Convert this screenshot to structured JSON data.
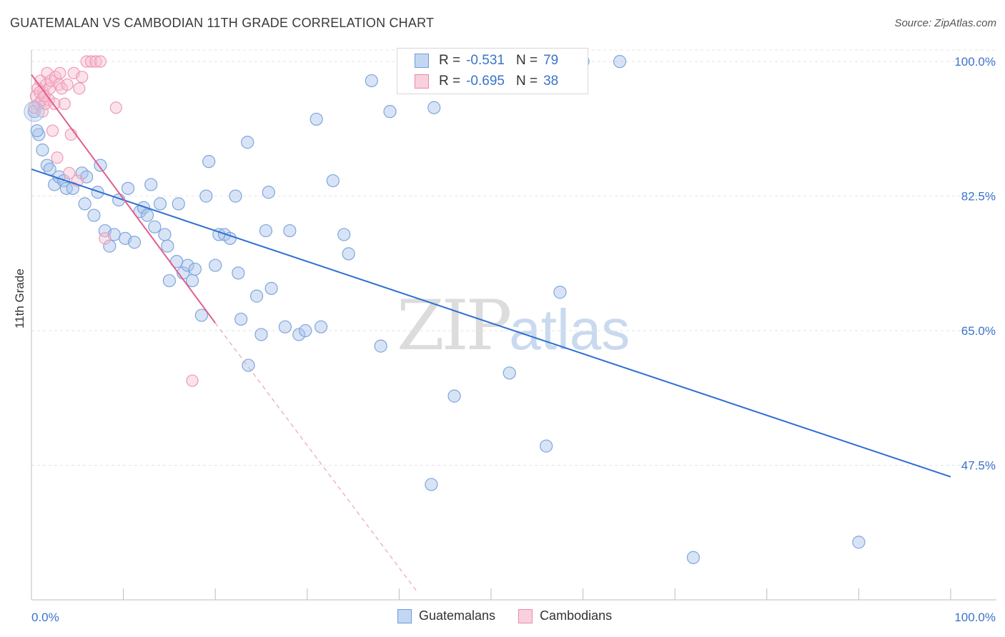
{
  "header": {
    "title": "GUATEMALAN VS CAMBODIAN 11TH GRADE CORRELATION CHART",
    "source": "Source: ZipAtlas.com"
  },
  "watermark": {
    "zip": "ZIP",
    "atlas": "atlas"
  },
  "legend": {
    "rows": [
      {
        "r_label": "R =",
        "r_value": "-0.531",
        "n_label": "N =",
        "n_value": "79",
        "color": "#a9c4ec",
        "border": "#6d9bdc"
      },
      {
        "r_label": "R =",
        "r_value": "-0.695",
        "n_label": "N =",
        "n_value": "38",
        "color": "#f7bfd1",
        "border": "#e98aa9"
      }
    ]
  },
  "bottom_legend": [
    "Guatemalans",
    "Cambodians"
  ],
  "chart_data": {
    "type": "scatter",
    "title": "GUATEMALAN VS CAMBODIAN 11TH GRADE CORRELATION CHART",
    "xlabel": "",
    "ylabel": "11th Grade",
    "xlim": [
      0,
      100
    ],
    "ylim": [
      30,
      101.5
    ],
    "x_tick_labels": [
      "0.0%",
      "100.0%"
    ],
    "y_ticks": [
      47.5,
      65.0,
      82.5,
      100.0
    ],
    "y_tick_labels": [
      "47.5%",
      "65.0%",
      "82.5%",
      "100.0%"
    ],
    "grid": true,
    "colors": {
      "guatemalans": "#3b73c9",
      "cambodians": "#e25d8e",
      "tick_text": "#3b73c9"
    },
    "series": [
      {
        "name": "Guatemalans",
        "points": [
          [
            0.3,
            93.5
          ],
          [
            0.8,
            90.5
          ],
          [
            1.2,
            88.5
          ],
          [
            1.7,
            86.5
          ],
          [
            2.0,
            86.0
          ],
          [
            2.5,
            84.0
          ],
          [
            3.0,
            85.0
          ],
          [
            3.5,
            84.5
          ],
          [
            3.8,
            83.5
          ],
          [
            4.5,
            83.5
          ],
          [
            5.5,
            85.5
          ],
          [
            6.0,
            85.0
          ],
          [
            5.8,
            81.5
          ],
          [
            6.8,
            80.0
          ],
          [
            7.2,
            83.0
          ],
          [
            7.5,
            86.5
          ],
          [
            8.0,
            78.0
          ],
          [
            8.5,
            76.0
          ],
          [
            9.0,
            77.5
          ],
          [
            9.5,
            82.0
          ],
          [
            10.2,
            77.0
          ],
          [
            10.5,
            83.5
          ],
          [
            11.2,
            76.5
          ],
          [
            11.8,
            80.5
          ],
          [
            12.2,
            81.0
          ],
          [
            12.6,
            80.0
          ],
          [
            13.0,
            84.0
          ],
          [
            13.4,
            78.5
          ],
          [
            14.0,
            81.5
          ],
          [
            14.5,
            77.5
          ],
          [
            14.8,
            76.0
          ],
          [
            15.0,
            71.5
          ],
          [
            15.8,
            74.0
          ],
          [
            16.0,
            81.5
          ],
          [
            16.5,
            72.5
          ],
          [
            17.0,
            73.5
          ],
          [
            17.5,
            71.5
          ],
          [
            17.8,
            73.0
          ],
          [
            18.5,
            67.0
          ],
          [
            19.0,
            82.5
          ],
          [
            19.3,
            87.0
          ],
          [
            20.0,
            73.5
          ],
          [
            20.4,
            77.5
          ],
          [
            21.0,
            77.5
          ],
          [
            21.6,
            77.0
          ],
          [
            22.2,
            82.5
          ],
          [
            22.5,
            72.5
          ],
          [
            22.8,
            66.5
          ],
          [
            23.5,
            89.5
          ],
          [
            23.6,
            60.5
          ],
          [
            24.5,
            69.5
          ],
          [
            25.0,
            64.5
          ],
          [
            25.8,
            83.0
          ],
          [
            25.5,
            78.0
          ],
          [
            26.1,
            70.5
          ],
          [
            27.6,
            65.5
          ],
          [
            28.1,
            78.0
          ],
          [
            29.1,
            64.5
          ],
          [
            29.8,
            65.0
          ],
          [
            31.0,
            92.5
          ],
          [
            31.5,
            65.5
          ],
          [
            32.8,
            84.5
          ],
          [
            34.0,
            77.5
          ],
          [
            34.5,
            75.0
          ],
          [
            37.0,
            97.5
          ],
          [
            38.0,
            63.0
          ],
          [
            39.0,
            93.5
          ],
          [
            43.5,
            45.0
          ],
          [
            43.8,
            94.0
          ],
          [
            46.0,
            56.5
          ],
          [
            52.0,
            59.5
          ],
          [
            53.5,
            100.0
          ],
          [
            56.0,
            50.0
          ],
          [
            57.5,
            70.0
          ],
          [
            60.0,
            100.0
          ],
          [
            64.0,
            100.0
          ],
          [
            72.0,
            35.5
          ],
          [
            90.0,
            37.5
          ],
          [
            0.6,
            91.0
          ]
        ],
        "trend": [
          [
            0,
            86.0
          ],
          [
            100,
            46.0
          ]
        ]
      },
      {
        "name": "Cambodians",
        "points": [
          [
            0.3,
            94.0
          ],
          [
            0.5,
            95.5
          ],
          [
            0.7,
            96.5
          ],
          [
            0.8,
            94.5
          ],
          [
            1.0,
            97.5
          ],
          [
            1.1,
            95.0
          ],
          [
            1.2,
            93.5
          ],
          [
            1.3,
            96.0
          ],
          [
            1.5,
            94.5
          ],
          [
            1.6,
            97.0
          ],
          [
            1.7,
            98.5
          ],
          [
            1.9,
            95.0
          ],
          [
            2.0,
            96.5
          ],
          [
            2.1,
            97.5
          ],
          [
            2.3,
            91.0
          ],
          [
            2.5,
            94.5
          ],
          [
            2.6,
            98.0
          ],
          [
            2.8,
            87.5
          ],
          [
            3.0,
            97.0
          ],
          [
            3.1,
            98.5
          ],
          [
            3.3,
            96.5
          ],
          [
            3.6,
            94.5
          ],
          [
            3.9,
            97.0
          ],
          [
            4.1,
            85.5
          ],
          [
            4.3,
            90.5
          ],
          [
            4.6,
            98.5
          ],
          [
            5.0,
            84.5
          ],
          [
            5.2,
            96.5
          ],
          [
            5.5,
            98.0
          ],
          [
            6.0,
            100.0
          ],
          [
            6.5,
            100.0
          ],
          [
            7.0,
            100.0
          ],
          [
            7.5,
            100.0
          ],
          [
            8.0,
            77.0
          ],
          [
            9.2,
            94.0
          ],
          [
            17.5,
            58.5
          ],
          [
            0.9,
            96.0
          ],
          [
            1.4,
            95.5
          ]
        ],
        "trend_solid": [
          [
            0,
            98.3
          ],
          [
            20,
            66.0
          ]
        ],
        "trend_dashed": [
          [
            20,
            66.0
          ],
          [
            42,
            31.0
          ]
        ]
      }
    ]
  }
}
